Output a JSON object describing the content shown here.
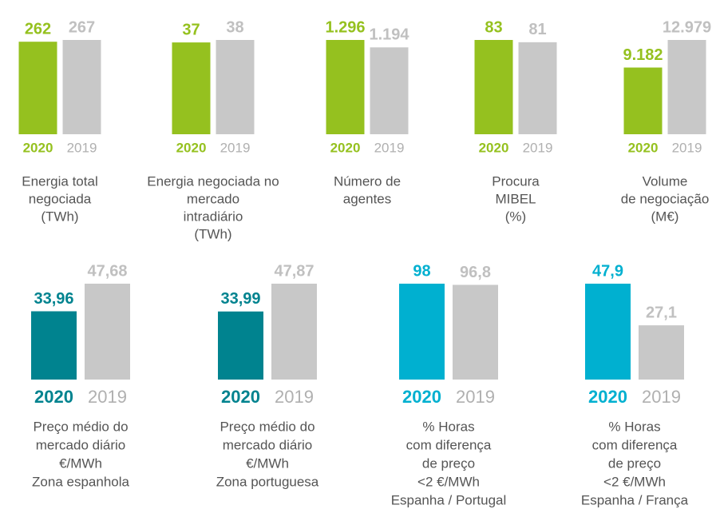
{
  "chart_data": [
    {
      "type": "bar",
      "categories": [
        "2020",
        "2019"
      ],
      "values": [
        262,
        267
      ],
      "value_labels": [
        "262",
        "267"
      ],
      "colors": [
        "#95c11f",
        "#c8c8c8"
      ],
      "caption": [
        "Energia total",
        "negociada",
        "(TWh)"
      ]
    },
    {
      "type": "bar",
      "categories": [
        "2020",
        "2019"
      ],
      "values": [
        37,
        38
      ],
      "value_labels": [
        "37",
        "38"
      ],
      "colors": [
        "#95c11f",
        "#c8c8c8"
      ],
      "caption": [
        "Energia negociada no",
        "mercado",
        "intradiário",
        "(TWh)"
      ]
    },
    {
      "type": "bar",
      "categories": [
        "2020",
        "2019"
      ],
      "values": [
        1296,
        1194
      ],
      "value_labels": [
        "1.296",
        "1.194"
      ],
      "colors": [
        "#95c11f",
        "#c8c8c8"
      ],
      "caption": [
        "Número de",
        "agentes"
      ]
    },
    {
      "type": "bar",
      "categories": [
        "2020",
        "2019"
      ],
      "values": [
        83,
        81
      ],
      "value_labels": [
        "83",
        "81"
      ],
      "colors": [
        "#95c11f",
        "#c8c8c8"
      ],
      "caption": [
        "Procura",
        "MIBEL",
        "(%)"
      ]
    },
    {
      "type": "bar",
      "categories": [
        "2020",
        "2019"
      ],
      "values": [
        9182,
        12979
      ],
      "value_labels": [
        "9.182",
        "12.979"
      ],
      "colors": [
        "#95c11f",
        "#c8c8c8"
      ],
      "caption": [
        "Volume",
        "de negociação",
        "(M€)"
      ]
    },
    {
      "type": "bar",
      "categories": [
        "2020",
        "2019"
      ],
      "values": [
        33.96,
        47.68
      ],
      "value_labels": [
        "33,96",
        "47,68"
      ],
      "colors": [
        "#00838f",
        "#c8c8c8"
      ],
      "caption": [
        "Preço médio do",
        "mercado diário",
        "€/MWh",
        "Zona espanhola"
      ]
    },
    {
      "type": "bar",
      "categories": [
        "2020",
        "2019"
      ],
      "values": [
        33.99,
        47.87
      ],
      "value_labels": [
        "33,99",
        "47,87"
      ],
      "colors": [
        "#00838f",
        "#c8c8c8"
      ],
      "caption": [
        "Preço médio do",
        "mercado diário",
        "€/MWh",
        "Zona portuguesa"
      ]
    },
    {
      "type": "bar",
      "categories": [
        "2020",
        "2019"
      ],
      "values": [
        98,
        96.8
      ],
      "value_labels": [
        "98",
        "96,8"
      ],
      "colors": [
        "#00b0d0",
        "#c8c8c8"
      ],
      "caption": [
        "% Horas",
        "com diferença",
        "de preço",
        "<2 €/MWh",
        "Espanha / Portugal"
      ]
    },
    {
      "type": "bar",
      "categories": [
        "2020",
        "2019"
      ],
      "values": [
        47.9,
        27.1
      ],
      "value_labels": [
        "47,9",
        "27,1"
      ],
      "colors": [
        "#00b0d0",
        "#c8c8c8"
      ],
      "caption": [
        "% Horas",
        "com diferença",
        "de preço",
        "<2 €/MWh",
        "Espanha / França"
      ]
    }
  ]
}
